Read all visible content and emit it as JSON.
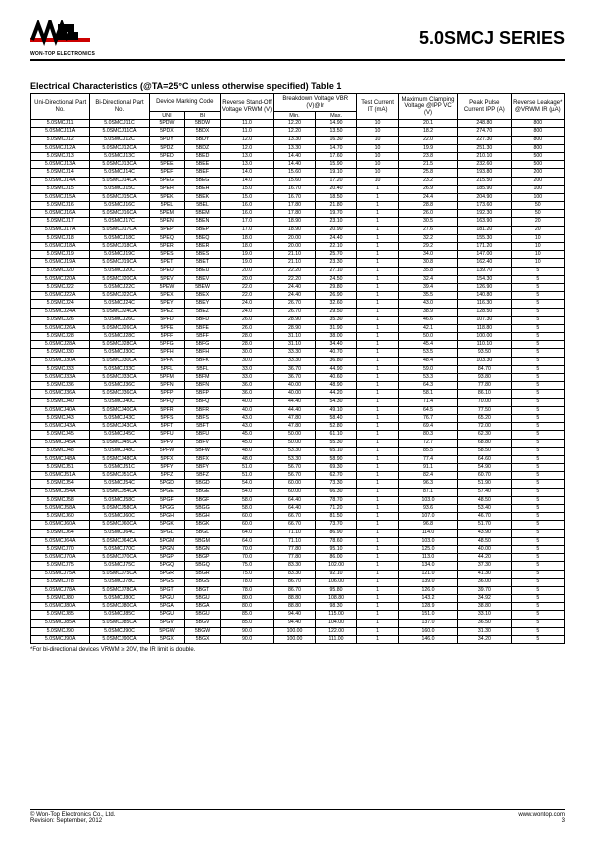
{
  "header": {
    "logo_caption": "WON-TOP ELECTRONICS",
    "series_title": "5.0SMCJ SERIES"
  },
  "table_title": "Electrical Characteristics (@TA=25°C unless otherwise specified) Table 1",
  "columns": {
    "uni": "Uni-Directional Part No.",
    "bi": "Bi-Directional Part No.",
    "marking": "Device Marking Code",
    "uni_sub": "UNI",
    "bi_sub": "BI",
    "vrwm": "Reverse Stand-Off Voltage VRWM (V)",
    "breakdown": "Breakdown Voltage VBR (V)@Ir",
    "min": "Min.",
    "max": "Max.",
    "test": "Test Current IT (mA)",
    "clamp": "Maximum Clamping Voltage @IPP VC (V)",
    "peak": "Peak Pulse Current IPP (A)",
    "leak": "Reverse Leakage* @VRWM IR (µA)"
  },
  "groups": [
    [
      [
        "5.0SMCJ11",
        "5.0SMCJ11C",
        "5PDW",
        "5BDW",
        "11.0",
        "12.20",
        "14.90",
        "10",
        "20.1",
        "248.80",
        "800"
      ],
      [
        "5.0SMCJ11A",
        "5.0SMCJ11CA",
        "5PDX",
        "5BDX",
        "11.0",
        "12.20",
        "13.50",
        "10",
        "18.2",
        "274.70",
        "800"
      ],
      [
        "5.0SMCJ12",
        "5.0SMCJ12C",
        "5PDY",
        "5BDY",
        "12.0",
        "13.30",
        "16.30",
        "10",
        "22.0",
        "227.30",
        "800"
      ],
      [
        "5.0SMCJ12A",
        "5.0SMCJ12CA",
        "5PDZ",
        "5BDZ",
        "12.0",
        "13.30",
        "14.70",
        "10",
        "19.9",
        "251.30",
        "800"
      ]
    ],
    [
      [
        "5.0SMCJ13",
        "5.0SMCJ13C",
        "5PED",
        "5BED",
        "13.0",
        "14.40",
        "17.60",
        "10",
        "23.8",
        "210.10",
        "500"
      ],
      [
        "5.0SMCJ13A",
        "5.0SMCJ13CA",
        "5PEE",
        "5BEE",
        "13.0",
        "14.40",
        "15.90",
        "10",
        "21.5",
        "232.60",
        "500"
      ],
      [
        "5.0SMCJ14",
        "5.0SMCJ14C",
        "5PEF",
        "5BEF",
        "14.0",
        "15.60",
        "19.10",
        "10",
        "25.8",
        "193.80",
        "200"
      ],
      [
        "5.0SMCJ14A",
        "5.0SMCJ14CA",
        "5PEG",
        "5BEG",
        "14.0",
        "15.60",
        "17.20",
        "10",
        "23.2",
        "215.50",
        "200"
      ]
    ],
    [
      [
        "5.0SMCJ15",
        "5.0SMCJ15C",
        "5PEH",
        "5BEH",
        "15.0",
        "16.70",
        "20.40",
        "1",
        "26.9",
        "185.90",
        "100"
      ],
      [
        "5.0SMCJ15A",
        "5.0SMCJ15CA",
        "5PEK",
        "5BEK",
        "15.0",
        "16.70",
        "18.50",
        "1",
        "24.4",
        "204.90",
        "100"
      ],
      [
        "5.0SMCJ16",
        "5.0SMCJ16C",
        "5PEL",
        "5BEL",
        "16.0",
        "17.80",
        "21.80",
        "1",
        "28.8",
        "173.60",
        "50"
      ],
      [
        "5.0SMCJ16A",
        "5.0SMCJ16CA",
        "5PEM",
        "5BEM",
        "16.0",
        "17.80",
        "19.70",
        "1",
        "26.0",
        "192.30",
        "50"
      ]
    ],
    [
      [
        "5.0SMCJ17",
        "5.0SMCJ17C",
        "5PEN",
        "5BEN",
        "17.0",
        "18.90",
        "23.10",
        "1",
        "30.5",
        "163.90",
        "20"
      ],
      [
        "5.0SMCJ17A",
        "5.0SMCJ17CA",
        "5PEP",
        "5BEP",
        "17.0",
        "18.90",
        "20.90",
        "1",
        "27.6",
        "181.20",
        "20"
      ],
      [
        "5.0SMCJ18",
        "5.0SMCJ18C",
        "5PEQ",
        "5BEQ",
        "18.0",
        "20.00",
        "24.40",
        "1",
        "32.2",
        "155.30",
        "10"
      ],
      [
        "5.0SMCJ18A",
        "5.0SMCJ18CA",
        "5PER",
        "5BER",
        "18.0",
        "20.00",
        "22.10",
        "1",
        "29.2",
        "171.20",
        "10"
      ]
    ],
    [
      [
        "5.0SMCJ19",
        "5.0SMCJ19C",
        "5PES",
        "5BES",
        "19.0",
        "21.10",
        "25.70",
        "1",
        "34.0",
        "147.00",
        "10"
      ],
      [
        "5.0SMCJ19A",
        "5.0SMCJ19CA",
        "5PET",
        "5BET",
        "19.0",
        "21.10",
        "23.30",
        "1",
        "30.8",
        "162.40",
        "10"
      ],
      [
        "5.0SMCJ20",
        "5.0SMCJ20C",
        "5PEU",
        "5BEU",
        "20.0",
        "22.20",
        "27.10",
        "1",
        "35.8",
        "139.70",
        "5"
      ],
      [
        "5.0SMCJ20A",
        "5.0SMCJ20CA",
        "5PEV",
        "5BEV",
        "20.0",
        "22.20",
        "24.50",
        "1",
        "32.4",
        "154.30",
        "5"
      ]
    ],
    [
      [
        "5.0SMCJ22",
        "5.0SMCJ22C",
        "5PEW",
        "5BEW",
        "22.0",
        "24.40",
        "29.80",
        "1",
        "39.4",
        "126.90",
        "5"
      ],
      [
        "5.0SMCJ22A",
        "5.0SMCJ22CA",
        "5PEX",
        "5BEX",
        "22.0",
        "24.40",
        "26.90",
        "1",
        "35.5",
        "140.80",
        "5"
      ],
      [
        "5.0SMCJ24",
        "5.0SMCJ24C",
        "5PEY",
        "5BEY",
        "24.0",
        "26.70",
        "32.60",
        "1",
        "43.0",
        "116.30",
        "5"
      ],
      [
        "5.0SMCJ24A",
        "5.0SMCJ24CA",
        "5PEZ",
        "5BEZ",
        "24.0",
        "26.70",
        "29.50",
        "1",
        "38.9",
        "128.50",
        "5"
      ]
    ],
    [
      [
        "5.0SMCJ26",
        "5.0SMCJ26C",
        "5PFD",
        "5BFD",
        "26.0",
        "28.90",
        "35.30",
        "1",
        "46.6",
        "107.30",
        "5"
      ],
      [
        "5.0SMCJ26A",
        "5.0SMCJ26CA",
        "5PFE",
        "5BFE",
        "26.0",
        "28.90",
        "31.90",
        "1",
        "42.1",
        "118.80",
        "5"
      ],
      [
        "5.0SMCJ28",
        "5.0SMCJ28C",
        "5PFF",
        "5BFF",
        "28.0",
        "31.10",
        "38.00",
        "1",
        "50.0",
        "100.00",
        "5"
      ],
      [
        "5.0SMCJ28A",
        "5.0SMCJ28CA",
        "5PFG",
        "5BFG",
        "28.0",
        "31.10",
        "34.40",
        "1",
        "45.4",
        "110.10",
        "5"
      ]
    ],
    [
      [
        "5.0SMCJ30",
        "5.0SMCJ30C",
        "5PFH",
        "5BFH",
        "30.0",
        "33.30",
        "40.70",
        "1",
        "53.5",
        "93.50",
        "5"
      ],
      [
        "5.0SMCJ30A",
        "5.0SMCJ30CA",
        "5PFK",
        "5BFK",
        "30.0",
        "33.30",
        "36.80",
        "1",
        "48.4",
        "103.30",
        "5"
      ],
      [
        "5.0SMCJ33",
        "5.0SMCJ33C",
        "5PFL",
        "5BFL",
        "33.0",
        "36.70",
        "44.90",
        "1",
        "59.0",
        "84.70",
        "5"
      ],
      [
        "5.0SMCJ33A",
        "5.0SMCJ33CA",
        "5PFM",
        "5BFM",
        "33.0",
        "36.70",
        "40.60",
        "1",
        "53.3",
        "93.80",
        "5"
      ]
    ],
    [
      [
        "5.0SMCJ36",
        "5.0SMCJ36C",
        "5PFN",
        "5BFN",
        "36.0",
        "40.00",
        "48.90",
        "1",
        "64.3",
        "77.80",
        "5"
      ],
      [
        "5.0SMCJ36A",
        "5.0SMCJ36CA",
        "5PFP",
        "5BFP",
        "36.0",
        "40.00",
        "44.20",
        "1",
        "58.1",
        "86.10",
        "5"
      ],
      [
        "5.0SMCJ40",
        "5.0SMCJ40C",
        "5PFQ",
        "5BFQ",
        "40.0",
        "44.40",
        "54.30",
        "1",
        "71.4",
        "70.00",
        "5"
      ],
      [
        "5.0SMCJ40A",
        "5.0SMCJ40CA",
        "5PFR",
        "5BFR",
        "40.0",
        "44.40",
        "49.10",
        "1",
        "64.5",
        "77.50",
        "5"
      ]
    ],
    [
      [
        "5.0SMCJ43",
        "5.0SMCJ43C",
        "5PFS",
        "5BFS",
        "43.0",
        "47.80",
        "58.40",
        "1",
        "76.7",
        "65.20",
        "5"
      ],
      [
        "5.0SMCJ43A",
        "5.0SMCJ43CA",
        "5PFT",
        "5BFT",
        "43.0",
        "47.80",
        "52.80",
        "1",
        "69.4",
        "72.00",
        "5"
      ],
      [
        "5.0SMCJ45",
        "5.0SMCJ45C",
        "5PFU",
        "5BFU",
        "45.0",
        "50.00",
        "61.10",
        "1",
        "80.3",
        "62.30",
        "5"
      ],
      [
        "5.0SMCJ45A",
        "5.0SMCJ45CA",
        "5PFV",
        "5BFV",
        "45.0",
        "50.00",
        "55.30",
        "1",
        "72.7",
        "68.80",
        "5"
      ]
    ],
    [
      [
        "5.0SMCJ48",
        "5.0SMCJ48C",
        "5PFW",
        "5BFW",
        "48.0",
        "53.30",
        "65.10",
        "1",
        "85.5",
        "58.50",
        "5"
      ],
      [
        "5.0SMCJ48A",
        "5.0SMCJ48CA",
        "5PFX",
        "5BFX",
        "48.0",
        "53.30",
        "58.90",
        "1",
        "77.4",
        "64.60",
        "5"
      ],
      [
        "5.0SMCJ51",
        "5.0SMCJ51C",
        "5PFY",
        "5BFY",
        "51.0",
        "56.70",
        "69.30",
        "1",
        "91.1",
        "54.90",
        "5"
      ],
      [
        "5.0SMCJ51A",
        "5.0SMCJ51CA",
        "5PFZ",
        "5BFZ",
        "51.0",
        "56.70",
        "62.70",
        "1",
        "82.4",
        "60.70",
        "5"
      ]
    ],
    [
      [
        "5.0SMCJ54",
        "5.0SMCJ54C",
        "5PGD",
        "5BGD",
        "54.0",
        "60.00",
        "73.30",
        "1",
        "96.3",
        "51.90",
        "5"
      ],
      [
        "5.0SMCJ54A",
        "5.0SMCJ54CA",
        "5PGE",
        "5BGE",
        "54.0",
        "60.00",
        "66.30",
        "1",
        "87.1",
        "57.40",
        "5"
      ],
      [
        "5.0SMCJ58",
        "5.0SMCJ58C",
        "5PGF",
        "5BGF",
        "58.0",
        "64.40",
        "78.70",
        "1",
        "103.0",
        "48.50",
        "5"
      ],
      [
        "5.0SMCJ58A",
        "5.0SMCJ58CA",
        "5PGG",
        "5BGG",
        "58.0",
        "64.40",
        "71.20",
        "1",
        "93.6",
        "53.40",
        "5"
      ]
    ],
    [
      [
        "5.0SMCJ60",
        "5.0SMCJ60C",
        "5PGH",
        "5BGH",
        "60.0",
        "66.70",
        "81.50",
        "1",
        "107.0",
        "46.70",
        "5"
      ],
      [
        "5.0SMCJ60A",
        "5.0SMCJ60CA",
        "5PGK",
        "5BGK",
        "60.0",
        "66.70",
        "73.70",
        "1",
        "96.8",
        "51.70",
        "5"
      ],
      [
        "5.0SMCJ64",
        "5.0SMCJ64C",
        "5PGL",
        "5BGL",
        "64.0",
        "71.10",
        "86.90",
        "1",
        "114.0",
        "43.90",
        "5"
      ],
      [
        "5.0SMCJ64A",
        "5.0SMCJ64CA",
        "5PGM",
        "5BGM",
        "64.0",
        "71.10",
        "78.60",
        "1",
        "103.0",
        "48.50",
        "5"
      ]
    ],
    [
      [
        "5.0SMCJ70",
        "5.0SMCJ70C",
        "5PGN",
        "5BGN",
        "70.0",
        "77.80",
        "95.10",
        "1",
        "125.0",
        "40.00",
        "5"
      ],
      [
        "5.0SMCJ70A",
        "5.0SMCJ70CA",
        "5PGP",
        "5BGP",
        "70.0",
        "77.80",
        "86.00",
        "1",
        "113.0",
        "44.20",
        "5"
      ],
      [
        "5.0SMCJ75",
        "5.0SMCJ75C",
        "5PGQ",
        "5BGQ",
        "75.0",
        "83.30",
        "102.00",
        "1",
        "134.0",
        "37.30",
        "5"
      ],
      [
        "5.0SMCJ75A",
        "5.0SMCJ75CA",
        "5PGR",
        "5BGR",
        "75.0",
        "83.30",
        "92.10",
        "1",
        "121.0",
        "41.30",
        "5"
      ]
    ],
    [
      [
        "5.0SMCJ78",
        "5.0SMCJ78C",
        "5PGS",
        "5BGS",
        "78.0",
        "86.70",
        "106.00",
        "1",
        "139.0",
        "36.00",
        "5"
      ],
      [
        "5.0SMCJ78A",
        "5.0SMCJ78CA",
        "5PGT",
        "5BGT",
        "78.0",
        "86.70",
        "95.80",
        "1",
        "126.0",
        "39.70",
        "5"
      ],
      [
        "5.0SMCJ80",
        "5.0SMCJ80C",
        "5PGU",
        "5BGU",
        "80.0",
        "88.80",
        "108.80",
        "1",
        "143.2",
        "34.92",
        "5"
      ],
      [
        "5.0SMCJ80A",
        "5.0SMCJ80CA",
        "5PGA",
        "5BGA",
        "80.0",
        "88.80",
        "98.30",
        "1",
        "128.9",
        "38.80",
        "5"
      ]
    ],
    [
      [
        "5.0SMCJ85",
        "5.0SMCJ85C",
        "5PGU",
        "5BGU",
        "85.0",
        "94.40",
        "115.00",
        "1",
        "151.0",
        "33.10",
        "5"
      ],
      [
        "5.0SMCJ85A",
        "5.0SMCJ85CA",
        "5PGV",
        "5BGV",
        "85.0",
        "94.40",
        "104.00",
        "1",
        "137.0",
        "36.50",
        "5"
      ],
      [
        "5.0SMCJ90",
        "5.0SMCJ90C",
        "5PGW",
        "5BGW",
        "90.0",
        "100.00",
        "122.00",
        "1",
        "160.0",
        "31.30",
        "5"
      ],
      [
        "5.0SMCJ90A",
        "5.0SMCJ90CA",
        "5PGX",
        "5BGX",
        "90.0",
        "100.00",
        "111.00",
        "1",
        "146.0",
        "34.20",
        "5"
      ]
    ]
  ],
  "footnote": "*For bi-directional devices VRWM ≥ 20V, the IR limit is double.",
  "footer": {
    "left1": "© Won-Top Electronics Co., Ltd.",
    "left2": "Revision: September, 2012",
    "right1": "www.wontop.com",
    "right2": "3"
  }
}
